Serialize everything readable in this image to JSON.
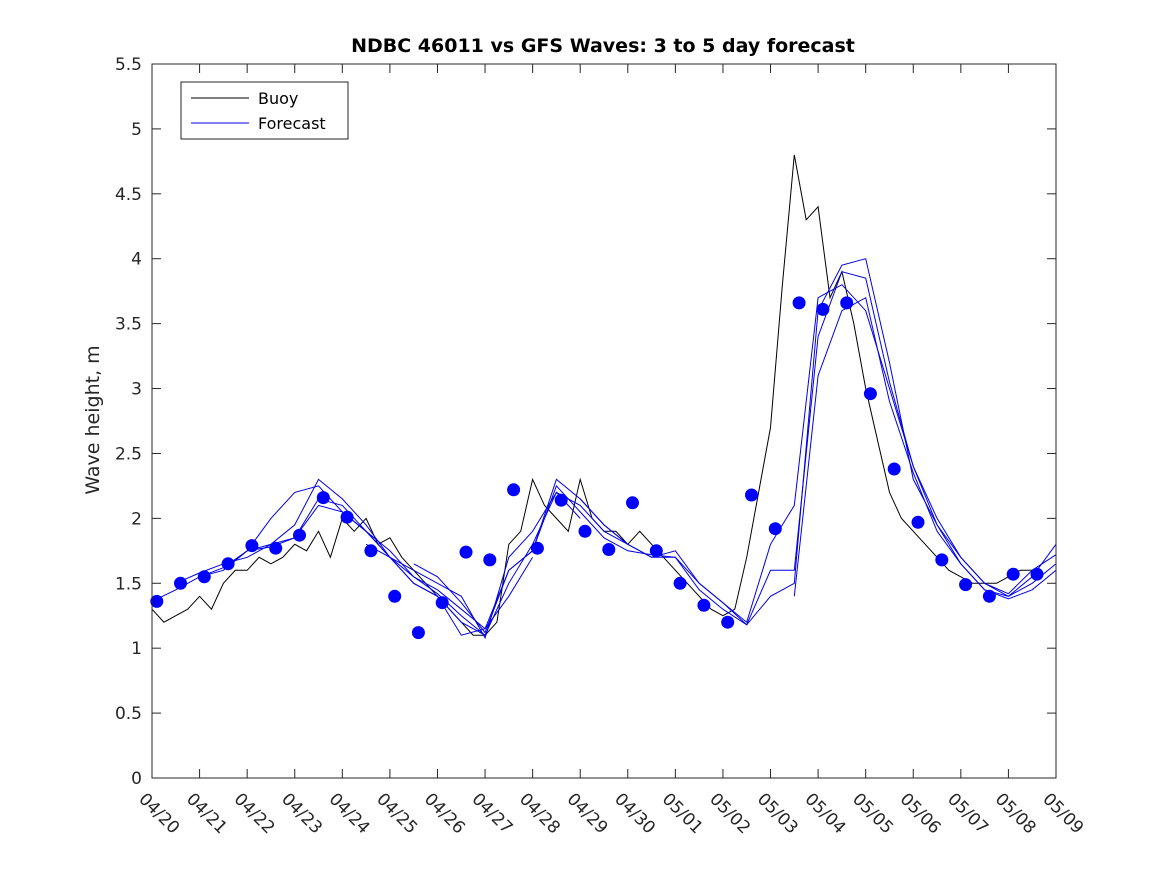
{
  "chart_data": {
    "type": "line",
    "title": "NDBC 46011 vs GFS Waves: 3 to 5 day forecast",
    "xlabel": "",
    "ylabel": "Wave height, m",
    "xlim": [
      0,
      19
    ],
    "ylim": [
      0,
      5.5
    ],
    "x_ticks": [
      "04/20",
      "04/21",
      "04/22",
      "04/23",
      "04/24",
      "04/25",
      "04/26",
      "04/27",
      "04/28",
      "04/29",
      "04/30",
      "05/01",
      "05/02",
      "05/03",
      "05/04",
      "05/05",
      "05/06",
      "05/07",
      "05/08",
      "05/09"
    ],
    "y_ticks": [
      "0",
      "0.5",
      "1",
      "1.5",
      "2",
      "2.5",
      "3",
      "3.5",
      "4",
      "4.5",
      "5",
      "5.5"
    ],
    "legend": {
      "position": "top-left",
      "entries": [
        "Buoy",
        "Forecast"
      ]
    },
    "colors": {
      "buoy": "#000000",
      "forecast": "#0000e6",
      "markers": "#0000ff"
    },
    "series": [
      {
        "name": "Buoy",
        "style": "line",
        "x": [
          0,
          0.25,
          0.5,
          0.75,
          1,
          1.25,
          1.5,
          1.75,
          2,
          2.25,
          2.5,
          2.75,
          3,
          3.25,
          3.5,
          3.75,
          4,
          4.25,
          4.5,
          4.75,
          5,
          5.25,
          5.5,
          5.75,
          6,
          6.25,
          6.5,
          6.75,
          7,
          7.25,
          7.5,
          7.75,
          8,
          8.25,
          8.5,
          8.75,
          9,
          9.25,
          9.5,
          9.75,
          10,
          10.25,
          10.5,
          10.75,
          11,
          11.25,
          11.5,
          11.75,
          12,
          12.25,
          12.5,
          12.75,
          13,
          13.25,
          13.5,
          13.75,
          14,
          14.25,
          14.5,
          14.75,
          15,
          15.25,
          15.5,
          15.75,
          16,
          16.25,
          16.5,
          16.75,
          17,
          17.25,
          17.5,
          17.75,
          18,
          18.25,
          18.5
        ],
        "y": [
          1.3,
          1.2,
          1.25,
          1.3,
          1.4,
          1.3,
          1.5,
          1.6,
          1.6,
          1.7,
          1.65,
          1.7,
          1.8,
          1.75,
          1.9,
          1.7,
          2.0,
          1.9,
          2.0,
          1.8,
          1.85,
          1.7,
          1.6,
          1.5,
          1.4,
          1.3,
          1.2,
          1.1,
          1.1,
          1.2,
          1.8,
          1.9,
          2.3,
          2.1,
          2.0,
          1.9,
          2.3,
          2.0,
          1.9,
          1.9,
          1.8,
          1.9,
          1.8,
          1.7,
          1.6,
          1.5,
          1.4,
          1.3,
          1.25,
          1.3,
          1.7,
          2.2,
          2.7,
          3.8,
          4.8,
          4.3,
          4.4,
          3.7,
          3.9,
          3.5,
          3.0,
          2.6,
          2.2,
          2.0,
          1.9,
          1.8,
          1.7,
          1.6,
          1.55,
          1.5,
          1.5,
          1.5,
          1.55,
          1.6,
          1.6
        ]
      },
      {
        "name": "Forecast",
        "style": "lines",
        "lines": [
          {
            "x": [
              0,
              0.5,
              1,
              1.5,
              2,
              2.5,
              3,
              3.5,
              4,
              4.5,
              5,
              5.5,
              6,
              6.5,
              7
            ],
            "y": [
              1.36,
              1.45,
              1.55,
              1.6,
              1.75,
              1.78,
              1.85,
              2.1,
              2.05,
              1.9,
              1.7,
              1.5,
              1.4,
              1.2,
              1.1
            ]
          },
          {
            "x": [
              0.5,
              1,
              1.5,
              2,
              2.5,
              3,
              3.5,
              4,
              4.5,
              5,
              5.5,
              6,
              6.5,
              7,
              7.5,
              8
            ],
            "y": [
              1.5,
              1.58,
              1.65,
              1.7,
              1.8,
              1.95,
              2.3,
              2.15,
              1.95,
              1.7,
              1.55,
              1.45,
              1.3,
              1.15,
              1.4,
              1.7
            ]
          },
          {
            "x": [
              1,
              1.5,
              2,
              2.5,
              3,
              3.5,
              4,
              4.5,
              5,
              5.5,
              6,
              6.5,
              7,
              7.5,
              8,
              8.5,
              9
            ],
            "y": [
              1.55,
              1.62,
              1.75,
              1.8,
              1.85,
              2.15,
              2.1,
              1.9,
              1.75,
              1.55,
              1.42,
              1.25,
              1.1,
              1.5,
              1.8,
              2.2,
              2.0
            ]
          },
          {
            "x": [
              1.5,
              2,
              2.5,
              3,
              3.5,
              4,
              4.5,
              5,
              5.5,
              6,
              6.5,
              7,
              7.5,
              8,
              8.5,
              9,
              9.5,
              10
            ],
            "y": [
              1.6,
              1.75,
              2.0,
              2.2,
              2.25,
              2.05,
              1.9,
              1.7,
              1.5,
              1.4,
              1.1,
              1.15,
              1.6,
              1.75,
              2.3,
              2.15,
              1.95,
              1.8
            ]
          },
          {
            "x": [
              4.5,
              5,
              5.5,
              6,
              6.5,
              7,
              7.5,
              8,
              8.5,
              9,
              9.5,
              10,
              10.5,
              11,
              11.5,
              12,
              12.5,
              13,
              13.5,
              14,
              14.5,
              15,
              15.5,
              16,
              16.5,
              17,
              17.5,
              18,
              18.5,
              19
            ],
            "y": [
              1.8,
              1.7,
              1.6,
              1.5,
              1.4,
              1.08,
              1.7,
              1.9,
              2.2,
              2.1,
              1.9,
              1.8,
              1.7,
              1.75,
              1.5,
              1.35,
              1.2,
              1.8,
              2.1,
              3.7,
              3.8,
              3.6,
              3.0,
              2.4,
              2.0,
              1.7,
              1.5,
              1.42,
              1.6,
              1.72
            ]
          },
          {
            "x": [
              5.5,
              6,
              6.5,
              7,
              7.5,
              8,
              8.5,
              9,
              9.5,
              10,
              10.5,
              11,
              11.5,
              12,
              12.5,
              13,
              13.5,
              14,
              14.5,
              15,
              15.5,
              16,
              16.5,
              17,
              17.5,
              18,
              18.5,
              19
            ],
            "y": [
              1.65,
              1.55,
              1.35,
              1.12,
              1.6,
              1.75,
              2.25,
              2.05,
              1.85,
              1.75,
              1.72,
              1.7,
              1.45,
              1.3,
              1.18,
              1.6,
              1.6,
              3.4,
              3.9,
              3.85,
              3.05,
              2.4,
              1.95,
              1.7,
              1.5,
              1.4,
              1.55,
              1.8
            ]
          },
          {
            "x": [
              9,
              9.5,
              10,
              10.5,
              11,
              11.5,
              12,
              12.5,
              13,
              13.5,
              14,
              14.5,
              15,
              15.5,
              16,
              16.5,
              17,
              17.5,
              18,
              18.5,
              19
            ],
            "y": [
              2.15,
              1.95,
              1.8,
              1.7,
              1.7,
              1.5,
              1.35,
              1.18,
              1.4,
              1.5,
              3.6,
              3.95,
              4.0,
              3.2,
              2.3,
              1.95,
              1.65,
              1.45,
              1.4,
              1.5,
              1.65
            ]
          },
          {
            "x": [
              13.5,
              14,
              14.5,
              15,
              15.5,
              16,
              16.5,
              17,
              17.5,
              18,
              18.5,
              19
            ],
            "y": [
              1.4,
              3.1,
              3.6,
              3.7,
              2.9,
              2.35,
              1.9,
              1.65,
              1.45,
              1.38,
              1.45,
              1.6
            ]
          }
        ]
      },
      {
        "name": "",
        "style": "markers",
        "x": [
          0.1,
          0.6,
          1.1,
          1.6,
          2.1,
          2.6,
          3.1,
          3.6,
          4.1,
          4.6,
          5.1,
          5.6,
          6.1,
          6.6,
          7.1,
          7.6,
          8.1,
          8.6,
          9.1,
          9.6,
          10.1,
          10.6,
          11.1,
          11.6,
          12.1,
          12.6,
          13.1,
          13.6,
          14.1,
          14.6,
          15.1,
          15.6,
          16.1,
          16.6,
          17.1,
          17.6,
          18.1,
          18.6
        ],
        "y": [
          1.36,
          1.5,
          1.55,
          1.65,
          1.79,
          1.77,
          1.87,
          2.16,
          2.01,
          1.75,
          1.4,
          1.12,
          1.35,
          1.74,
          1.68,
          2.22,
          1.77,
          2.14,
          1.9,
          1.76,
          2.12,
          1.75,
          1.5,
          1.33,
          1.2,
          2.18,
          1.92,
          3.66,
          3.61,
          3.66,
          2.96,
          2.38,
          1.97,
          1.68,
          1.49,
          1.4,
          1.57,
          1.57
        ]
      }
    ]
  }
}
